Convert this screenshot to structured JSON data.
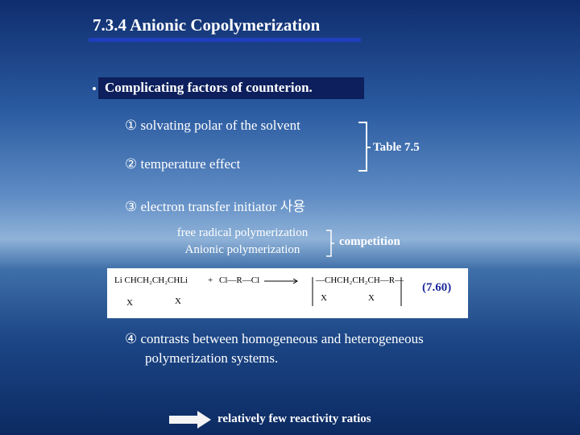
{
  "title": "7.3.4 Anionic Copolymerization",
  "heading": "Complicating factors of counterion.",
  "items": [
    "① solvating polar of the solvent",
    "② temperature effect",
    "③ electron transfer initiator 사용"
  ],
  "table_ref": "Table 7.5",
  "competing": [
    "free radical polymerization",
    "Anionic polymerization"
  ],
  "competition_label": "competition",
  "equation": {
    "reactant": "Li CHCH₂CH₂CHLi",
    "plus": "+",
    "coreactant": "Cl—R—Cl",
    "product": "—CHCH₂CH₂CH—R—",
    "substituent": "X",
    "number": "(7.60)"
  },
  "item4": [
    "④ contrasts between homogeneous and heterogeneous",
    "polymerization systems."
  ],
  "conclusion": "relatively few reactivity ratios"
}
